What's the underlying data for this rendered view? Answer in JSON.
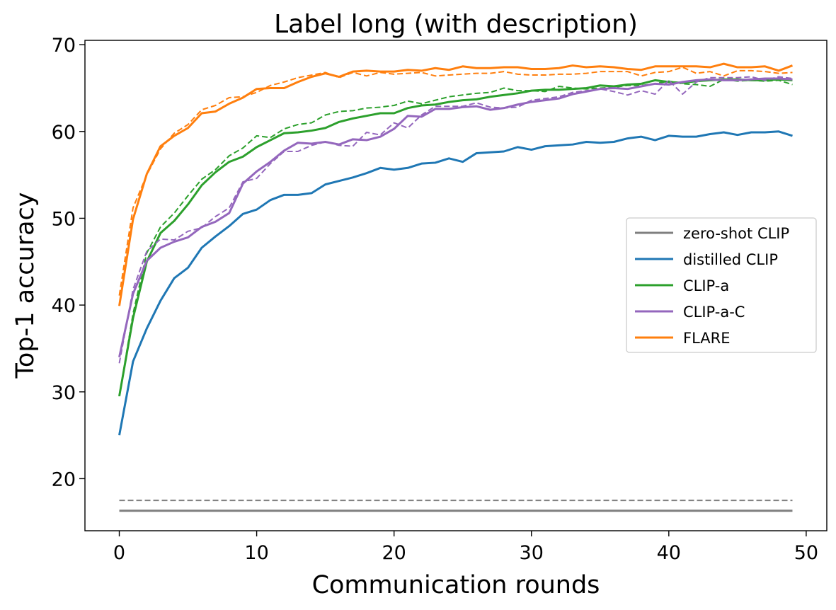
{
  "chart_data": {
    "type": "line",
    "title": "Label long (with description)",
    "xlabel": "Communication rounds",
    "ylabel": "Top-1 accuracy",
    "xlim": [
      -2.5,
      51.5
    ],
    "ylim": [
      14,
      70.5
    ],
    "xticks": [
      0,
      10,
      20,
      30,
      40,
      50
    ],
    "yticks": [
      20,
      30,
      40,
      50,
      60,
      70
    ],
    "grid": false,
    "legend_position": "center-right",
    "x": [
      0,
      1,
      2,
      3,
      4,
      5,
      6,
      7,
      8,
      9,
      10,
      11,
      12,
      13,
      14,
      15,
      16,
      17,
      18,
      19,
      20,
      21,
      22,
      23,
      24,
      25,
      26,
      27,
      28,
      29,
      30,
      31,
      32,
      33,
      34,
      35,
      36,
      37,
      38,
      39,
      40,
      41,
      42,
      43,
      44,
      45,
      46,
      47,
      48,
      49
    ],
    "series": [
      {
        "name": "zero-shot CLIP",
        "color": "#7f7f7f",
        "solid": [
          16.3,
          16.3,
          16.3,
          16.3,
          16.3,
          16.3,
          16.3,
          16.3,
          16.3,
          16.3,
          16.3,
          16.3,
          16.3,
          16.3,
          16.3,
          16.3,
          16.3,
          16.3,
          16.3,
          16.3,
          16.3,
          16.3,
          16.3,
          16.3,
          16.3,
          16.3,
          16.3,
          16.3,
          16.3,
          16.3,
          16.3,
          16.3,
          16.3,
          16.3,
          16.3,
          16.3,
          16.3,
          16.3,
          16.3,
          16.3,
          16.3,
          16.3,
          16.3,
          16.3,
          16.3,
          16.3,
          16.3,
          16.3,
          16.3,
          16.3
        ],
        "dashed": [
          17.5,
          17.5,
          17.5,
          17.5,
          17.5,
          17.5,
          17.5,
          17.5,
          17.5,
          17.5,
          17.5,
          17.5,
          17.5,
          17.5,
          17.5,
          17.5,
          17.5,
          17.5,
          17.5,
          17.5,
          17.5,
          17.5,
          17.5,
          17.5,
          17.5,
          17.5,
          17.5,
          17.5,
          17.5,
          17.5,
          17.5,
          17.5,
          17.5,
          17.5,
          17.5,
          17.5,
          17.5,
          17.5,
          17.5,
          17.5,
          17.5,
          17.5,
          17.5,
          17.5,
          17.5,
          17.5,
          17.5,
          17.5,
          17.5,
          17.5
        ]
      },
      {
        "name": "distilled CLIP",
        "color": "#1f77b4",
        "solid": [
          25.0,
          33.5,
          37.3,
          40.5,
          43.1,
          44.3,
          46.6,
          47.9,
          49.1,
          50.5,
          51.0,
          52.1,
          52.7,
          52.7,
          52.9,
          53.9,
          54.3,
          54.7,
          55.2,
          55.8,
          55.6,
          55.8,
          56.3,
          56.4,
          56.9,
          56.5,
          57.5,
          57.6,
          57.7,
          58.2,
          57.9,
          58.3,
          58.4,
          58.5,
          58.8,
          58.7,
          58.8,
          59.2,
          59.4,
          59.0,
          59.5,
          59.4,
          59.4,
          59.7,
          59.9,
          59.6,
          59.9,
          59.9,
          60.0,
          59.5
        ],
        "dashed": null
      },
      {
        "name": "CLIP-a",
        "color": "#2ca02c",
        "solid": [
          29.5,
          38.5,
          45.0,
          48.3,
          49.7,
          51.6,
          53.8,
          55.3,
          56.5,
          57.1,
          58.2,
          59.0,
          59.8,
          59.9,
          60.1,
          60.4,
          61.1,
          61.5,
          61.8,
          62.1,
          62.1,
          62.7,
          63.0,
          63.1,
          63.4,
          63.6,
          63.7,
          64.0,
          64.2,
          64.4,
          64.7,
          64.8,
          64.8,
          64.9,
          65.0,
          65.3,
          65.2,
          65.4,
          65.5,
          65.9,
          65.7,
          65.6,
          65.8,
          65.9,
          66.0,
          66.0,
          65.9,
          65.9,
          66.0,
          65.9
        ],
        "dashed": [
          29.5,
          39.0,
          46.0,
          49.0,
          50.6,
          52.6,
          54.5,
          55.6,
          57.2,
          58.1,
          59.5,
          59.3,
          60.3,
          60.8,
          61.0,
          61.9,
          62.3,
          62.4,
          62.7,
          62.8,
          63.0,
          63.5,
          63.2,
          63.6,
          64.0,
          64.2,
          64.4,
          64.5,
          65.0,
          64.7,
          64.7,
          64.6,
          65.2,
          65.0,
          64.9,
          65.0,
          65.1,
          65.3,
          65.3,
          65.5,
          65.8,
          65.5,
          65.4,
          65.2,
          66.0,
          65.8,
          65.9,
          65.8,
          65.9,
          65.4
        ]
      },
      {
        "name": "CLIP-a-C",
        "color": "#9467bd",
        "solid": [
          34.0,
          41.3,
          45.1,
          46.6,
          47.3,
          47.8,
          49.0,
          49.6,
          50.6,
          54.0,
          55.4,
          56.5,
          57.8,
          58.7,
          58.6,
          58.8,
          58.5,
          59.1,
          59.0,
          59.4,
          60.3,
          61.8,
          61.7,
          62.6,
          62.6,
          62.8,
          62.9,
          62.5,
          62.7,
          63.1,
          63.4,
          63.6,
          63.8,
          64.3,
          64.6,
          64.9,
          65.0,
          64.9,
          65.2,
          65.5,
          65.4,
          65.7,
          65.9,
          66.0,
          65.9,
          65.9,
          66.0,
          66.1,
          66.1,
          66.0
        ],
        "dashed": [
          33.3,
          41.8,
          46.2,
          47.6,
          47.5,
          48.5,
          48.9,
          50.2,
          51.2,
          54.2,
          54.6,
          56.3,
          57.7,
          57.7,
          58.4,
          58.8,
          58.4,
          58.3,
          59.9,
          59.6,
          61.0,
          60.4,
          61.9,
          62.9,
          62.9,
          62.9,
          63.3,
          62.8,
          62.7,
          62.8,
          63.6,
          63.8,
          64.0,
          64.5,
          64.7,
          64.9,
          64.6,
          64.2,
          64.7,
          64.3,
          65.9,
          64.3,
          65.7,
          66.2,
          66.2,
          66.2,
          66.3,
          65.9,
          66.3,
          66.1
        ]
      },
      {
        "name": "FLARE",
        "color": "#ff7f0e",
        "solid": [
          39.9,
          49.9,
          55.1,
          58.3,
          59.5,
          60.4,
          62.1,
          62.3,
          63.2,
          63.9,
          64.9,
          65.0,
          65.0,
          65.7,
          66.3,
          66.7,
          66.3,
          66.9,
          67.0,
          66.9,
          66.9,
          67.1,
          67.0,
          67.3,
          67.1,
          67.5,
          67.3,
          67.3,
          67.4,
          67.4,
          67.2,
          67.2,
          67.3,
          67.6,
          67.4,
          67.5,
          67.4,
          67.2,
          67.1,
          67.5,
          67.5,
          67.5,
          67.5,
          67.4,
          67.8,
          67.4,
          67.4,
          67.5,
          67.0,
          67.6
        ],
        "dashed": [
          41.1,
          51.2,
          55.0,
          58.0,
          59.8,
          60.8,
          62.5,
          63.0,
          63.9,
          64.0,
          64.5,
          65.3,
          65.7,
          66.2,
          66.5,
          66.8,
          66.2,
          66.8,
          66.4,
          66.8,
          66.6,
          66.7,
          66.8,
          66.4,
          66.5,
          66.6,
          66.7,
          66.7,
          66.9,
          66.6,
          66.5,
          66.5,
          66.6,
          66.6,
          66.7,
          66.9,
          66.9,
          66.9,
          66.4,
          66.8,
          66.9,
          67.4,
          66.7,
          66.9,
          66.4,
          67.0,
          67.0,
          66.9,
          66.7,
          66.8
        ]
      }
    ]
  }
}
